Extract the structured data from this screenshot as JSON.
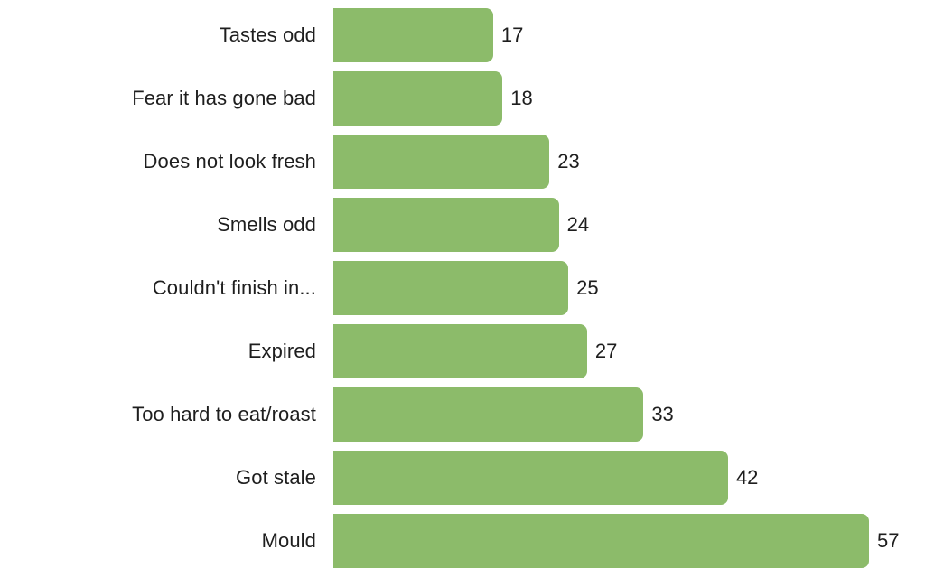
{
  "page": {
    "background": "#ffffff"
  },
  "chart_data": {
    "type": "bar",
    "orientation": "horizontal",
    "title": "",
    "xlabel": "",
    "ylabel": "",
    "categories": [
      "Tastes odd",
      "Fear it has gone bad",
      "Does not look fresh",
      "Smells odd",
      "Couldn't finish in...",
      "Expired",
      "Too hard to eat/roast",
      "Got stale",
      "Mould"
    ],
    "values": [
      17,
      18,
      23,
      24,
      25,
      27,
      33,
      42,
      57
    ],
    "value_labels_shown": true,
    "xlim": [
      0,
      60
    ],
    "grid": false,
    "legend": "none",
    "bar_color": "#8cbb6a",
    "text_color": "#1e1e1e"
  }
}
